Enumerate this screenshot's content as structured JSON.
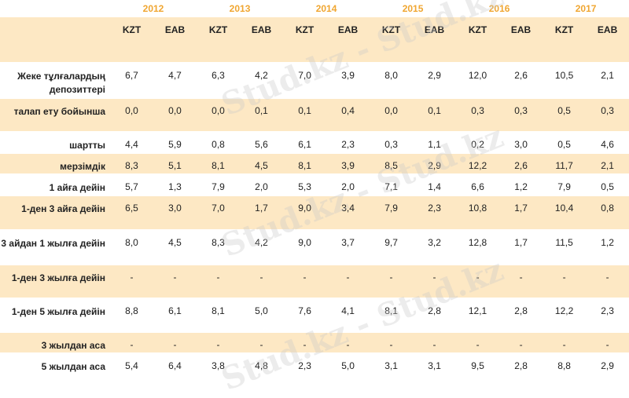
{
  "years": [
    "2012",
    "2013",
    "2014",
    "2015",
    "2016",
    "2017"
  ],
  "currencies": [
    "KZT",
    "EAB"
  ],
  "rows": [
    {
      "label": "Жеке тұлғалардың депозиттері",
      "values": [
        "6,7",
        "4,7",
        "6,3",
        "4,2",
        "7,0",
        "3,9",
        "8,0",
        "2,9",
        "12,0",
        "2,6",
        "10,5",
        "2,1"
      ]
    },
    {
      "label": "талап ету бойынша",
      "values": [
        "0,0",
        "0,0",
        "0,0",
        "0,1",
        "0,1",
        "0,4",
        "0,0",
        "0,1",
        "0,3",
        "0,3",
        "0,5",
        "0,3"
      ]
    },
    {
      "label": "шартты",
      "values": [
        "4,4",
        "5,9",
        "0,8",
        "5,6",
        "6,1",
        "2,3",
        "0,3",
        "1,1",
        "0,2",
        "3,0",
        "0,5",
        "4,6"
      ]
    },
    {
      "label": "мерзімдік",
      "values": [
        "8,3",
        "5,1",
        "8,1",
        "4,5",
        "8,1",
        "3,9",
        "8,5",
        "2,9",
        "12,2",
        "2,6",
        "11,7",
        "2,1"
      ]
    },
    {
      "label": "1 айға дейін",
      "values": [
        "5,7",
        "1,3",
        "7,9",
        "2,0",
        "5,3",
        "2,0",
        "7,1",
        "1,4",
        "6,6",
        "1,2",
        "7,9",
        "0,5"
      ]
    },
    {
      "label": "1-ден 3 айға дейін",
      "values": [
        "6,5",
        "3,0",
        "7,0",
        "1,7",
        "9,0",
        "3,4",
        "7,9",
        "2,3",
        "10,8",
        "1,7",
        "10,4",
        "0,8"
      ]
    },
    {
      "label": "3 айдан 1 жылға дейін",
      "values": [
        "8,0",
        "4,5",
        "8,3",
        "4,2",
        "9,0",
        "3,7",
        "9,7",
        "3,2",
        "12,8",
        "1,7",
        "11,5",
        "1,2"
      ]
    },
    {
      "label": "1-ден 3 жылға дейін",
      "values": [
        "-",
        "-",
        "-",
        "-",
        "-",
        "-",
        "-",
        "-",
        "-",
        "-",
        "-",
        "-"
      ]
    },
    {
      "label": "1-ден 5 жылға дейін",
      "values": [
        "8,8",
        "6,1",
        "8,1",
        "5,0",
        "7,6",
        "4,1",
        "8,1",
        "2,8",
        "12,1",
        "2,8",
        "12,2",
        "2,3"
      ]
    },
    {
      "label": "3 жылдан аса",
      "values": [
        "-",
        "-",
        "-",
        "-",
        "-",
        "-",
        "-",
        "-",
        "-",
        "-",
        "-",
        "-"
      ]
    },
    {
      "label": "5 жылдан аса",
      "values": [
        "5,4",
        "6,4",
        "3,8",
        "4,8",
        "2,3",
        "5,0",
        "3,1",
        "3,1",
        "9,5",
        "2,8",
        "8,8",
        "2,9"
      ]
    }
  ],
  "watermark": "Stud.kz - Stud.kz",
  "colors": {
    "accent": "#f0a631",
    "shade": "#fde8c4"
  }
}
